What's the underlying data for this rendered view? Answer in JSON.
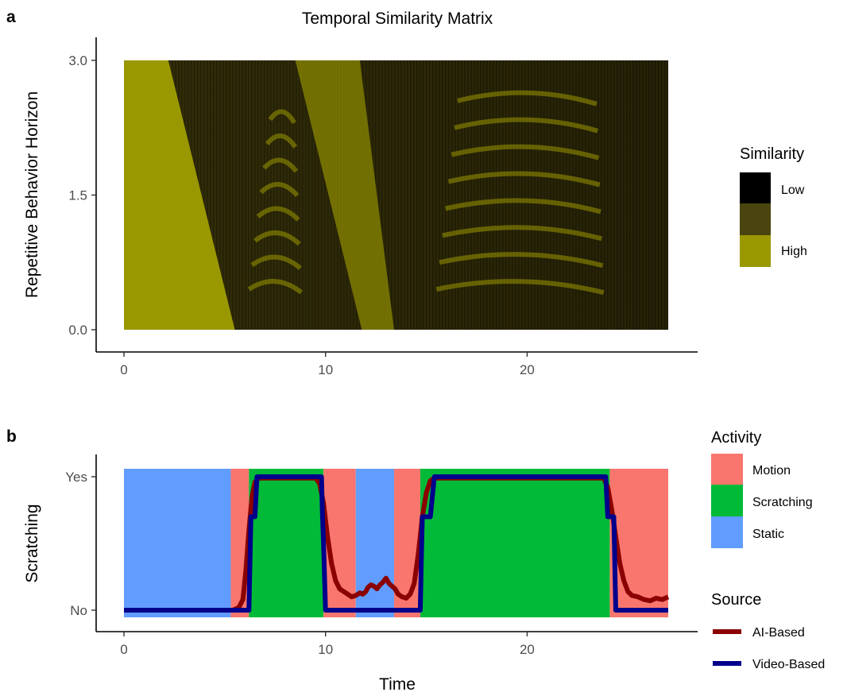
{
  "chart_data": [
    {
      "panel_tag": "a",
      "type": "heatmap",
      "title": "Temporal Similarity Matrix",
      "xlabel": "",
      "ylabel": "Repetitive Behavior Horizon",
      "xlim": [
        0,
        27
      ],
      "ylim": [
        0,
        3.0
      ],
      "x_ticks": [
        {
          "value": 0,
          "label": "0"
        },
        {
          "value": 10,
          "label": "10"
        },
        {
          "value": 20,
          "label": "20"
        }
      ],
      "y_ticks": [
        {
          "value": 0,
          "label": "0.0"
        },
        {
          "value": 1.5,
          "label": "1.5"
        },
        {
          "value": 3.0,
          "label": "3.0"
        }
      ],
      "grid": false,
      "legend": {
        "title": "Similarity",
        "placement": "right",
        "entries": [
          {
            "label": "Low",
            "color": "#000000"
          },
          {
            "label": "",
            "color": "#4a4510"
          },
          {
            "label": "High",
            "color": "#9a9800"
          }
        ]
      },
      "colors": {
        "low": "#000000",
        "mid": "#4a4510",
        "high": "#9a9800",
        "textured": "#2a2608"
      },
      "features": {
        "high_similarity_triangles": [
          {
            "x_base_start": 0,
            "x_base_end": 5.5,
            "x_top_end": 2.2
          },
          {
            "x_base_start": 11.8,
            "x_base_end": 13.4,
            "x_top_end": 8.5
          }
        ],
        "scratch_episodes": [
          {
            "x_start": 6.2,
            "x_end": 8.8
          },
          {
            "x_start": 15.5,
            "x_end": 23.8
          }
        ]
      }
    },
    {
      "panel_tag": "b",
      "type": "line",
      "xlabel": "Time",
      "ylabel": "Scratching",
      "xlim": [
        0,
        27
      ],
      "ylim": [
        0,
        1
      ],
      "x_ticks": [
        {
          "value": 0,
          "label": "0"
        },
        {
          "value": 10,
          "label": "10"
        },
        {
          "value": 20,
          "label": "20"
        }
      ],
      "y_ticks": [
        {
          "value": 0,
          "label": "No"
        },
        {
          "value": 1,
          "label": "Yes"
        }
      ],
      "grid": false,
      "activity_legend": {
        "title": "Activity",
        "placement": "right",
        "entries": [
          {
            "label": "Motion",
            "color": "#f8766d"
          },
          {
            "label": "Scratching",
            "color": "#00ba38"
          },
          {
            "label": "Static",
            "color": "#619cff"
          }
        ]
      },
      "activity_segments": [
        {
          "start": 0,
          "end": 5.3,
          "activity": "Static"
        },
        {
          "start": 5.3,
          "end": 6.2,
          "activity": "Motion"
        },
        {
          "start": 6.2,
          "end": 9.9,
          "activity": "Scratching"
        },
        {
          "start": 9.9,
          "end": 11.5,
          "activity": "Motion"
        },
        {
          "start": 11.5,
          "end": 13.4,
          "activity": "Static"
        },
        {
          "start": 13.4,
          "end": 14.7,
          "activity": "Motion"
        },
        {
          "start": 14.7,
          "end": 24.1,
          "activity": "Scratching"
        },
        {
          "start": 24.1,
          "end": 27,
          "activity": "Motion"
        }
      ],
      "source_legend": {
        "title": "Source",
        "placement": "right",
        "entries": [
          {
            "label": "AI-Based",
            "color": "#8b0000"
          },
          {
            "label": "Video-Based",
            "color": "#00008b"
          }
        ]
      },
      "series": [
        {
          "name": "AI-Based",
          "color": "#8b0000",
          "points": [
            [
              0,
              0
            ],
            [
              5.4,
              0
            ],
            [
              5.7,
              0.02
            ],
            [
              5.9,
              0.08
            ],
            [
              6.05,
              0.3
            ],
            [
              6.2,
              0.6
            ],
            [
              6.35,
              0.85
            ],
            [
              6.5,
              0.96
            ],
            [
              6.7,
              0.99
            ],
            [
              9.5,
              0.99
            ],
            [
              9.7,
              0.95
            ],
            [
              9.9,
              0.8
            ],
            [
              10.1,
              0.55
            ],
            [
              10.3,
              0.35
            ],
            [
              10.5,
              0.22
            ],
            [
              10.7,
              0.16
            ],
            [
              10.9,
              0.14
            ],
            [
              11.1,
              0.12
            ],
            [
              11.3,
              0.1
            ],
            [
              11.5,
              0.11
            ],
            [
              11.7,
              0.13
            ],
            [
              11.85,
              0.12
            ],
            [
              12.0,
              0.14
            ],
            [
              12.1,
              0.17
            ],
            [
              12.25,
              0.19
            ],
            [
              12.4,
              0.18
            ],
            [
              12.55,
              0.16
            ],
            [
              12.7,
              0.19
            ],
            [
              12.85,
              0.21
            ],
            [
              13.0,
              0.24
            ],
            [
              13.15,
              0.2
            ],
            [
              13.3,
              0.18
            ],
            [
              13.45,
              0.16
            ],
            [
              13.6,
              0.12
            ],
            [
              13.8,
              0.1
            ],
            [
              14.0,
              0.09
            ],
            [
              14.2,
              0.12
            ],
            [
              14.4,
              0.2
            ],
            [
              14.6,
              0.42
            ],
            [
              14.8,
              0.7
            ],
            [
              15.0,
              0.88
            ],
            [
              15.2,
              0.97
            ],
            [
              15.4,
              0.99
            ],
            [
              23.8,
              0.99
            ],
            [
              24.0,
              0.92
            ],
            [
              24.2,
              0.75
            ],
            [
              24.4,
              0.55
            ],
            [
              24.6,
              0.35
            ],
            [
              24.8,
              0.22
            ],
            [
              25.0,
              0.14
            ],
            [
              25.2,
              0.11
            ],
            [
              25.5,
              0.1
            ],
            [
              25.8,
              0.08
            ],
            [
              26.1,
              0.07
            ],
            [
              26.4,
              0.09
            ],
            [
              26.7,
              0.08
            ],
            [
              27,
              0.1
            ]
          ]
        },
        {
          "name": "Video-Based",
          "color": "#00008b",
          "points": [
            [
              0,
              0
            ],
            [
              6.2,
              0
            ],
            [
              6.3,
              0.7
            ],
            [
              6.5,
              0.7
            ],
            [
              6.6,
              1
            ],
            [
              9.8,
              1
            ],
            [
              9.85,
              0.7
            ],
            [
              9.9,
              0.5
            ],
            [
              10.0,
              0
            ],
            [
              14.7,
              0
            ],
            [
              14.8,
              0.7
            ],
            [
              15.2,
              0.7
            ],
            [
              15.4,
              1
            ],
            [
              23.9,
              1
            ],
            [
              24.0,
              0.7
            ],
            [
              24.3,
              0.7
            ],
            [
              24.4,
              0
            ],
            [
              27,
              0
            ]
          ]
        }
      ]
    }
  ]
}
